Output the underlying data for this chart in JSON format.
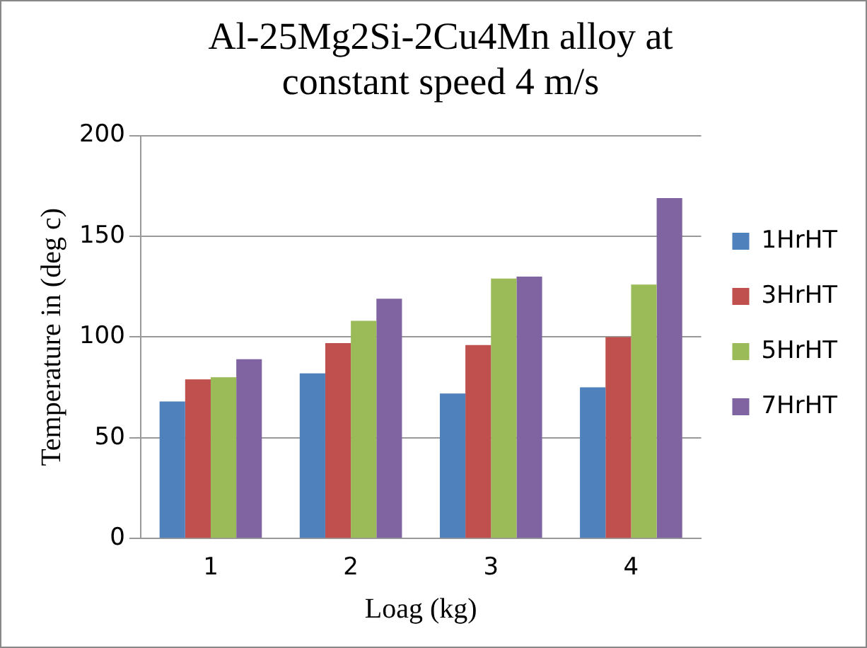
{
  "chart_data": {
    "type": "bar",
    "title": "Al-25Mg2Si-2Cu4Mn alloy at constant speed 4 m/s",
    "xlabel": "Loag (kg)",
    "ylabel": "Temperature in (deg c)",
    "categories": [
      "1",
      "2",
      "3",
      "4"
    ],
    "series": [
      {
        "name": "1HrHT",
        "color": "#4f81bd",
        "values": [
          68,
          82,
          72,
          75
        ]
      },
      {
        "name": "3HrHT",
        "color": "#c0504d",
        "values": [
          79,
          97,
          96,
          100
        ]
      },
      {
        "name": "5HrHT",
        "color": "#9bbb59",
        "values": [
          80,
          108,
          129,
          126
        ]
      },
      {
        "name": "7HrHT",
        "color": "#8064a2",
        "values": [
          89,
          119,
          130,
          169
        ]
      }
    ],
    "ylim": [
      0,
      200
    ],
    "yticks": [
      0,
      50,
      100,
      150,
      200
    ],
    "grid": "y",
    "legend": "right"
  }
}
